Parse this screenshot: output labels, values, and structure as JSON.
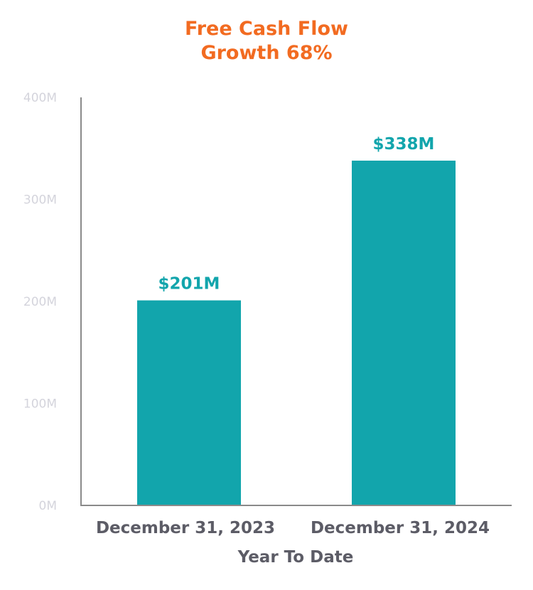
{
  "chart_data": {
    "type": "bar",
    "title": "Free Cash Flow",
    "subtitle": "Growth 68%",
    "categories": [
      "December 31, 2023",
      "December 31, 2024"
    ],
    "values": [
      201,
      338
    ],
    "data_labels": [
      "$201M",
      "$338M"
    ],
    "xlabel": "Year To Date",
    "ylabel": "",
    "ylim": [
      0,
      400
    ],
    "yticks": [
      0,
      100,
      200,
      300,
      400
    ],
    "ytick_labels": [
      "0M",
      "100M",
      "200M",
      "300M",
      "400M"
    ],
    "grid": false,
    "legend": "none",
    "colors": {
      "bar": "#12A5AC",
      "title": "#F26B21",
      "axis_label": "#5c5c66",
      "tick": "#d4d4dc"
    }
  }
}
